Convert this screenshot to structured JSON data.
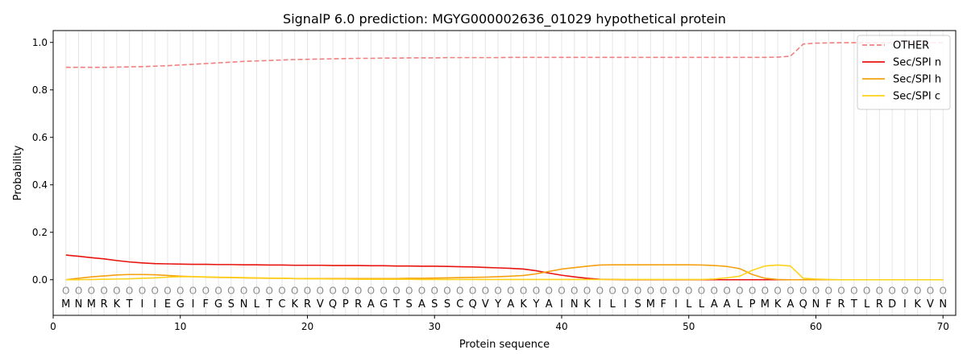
{
  "chart_data": {
    "type": "line",
    "title": "SignalP 6.0 prediction: MGYG000002636_01029 hypothetical protein",
    "xlabel": "Protein sequence",
    "ylabel": "Probability",
    "xlim": [
      0,
      71
    ],
    "ylim": [
      -0.15,
      1.05
    ],
    "x_ticks": [
      0,
      10,
      20,
      30,
      40,
      50,
      60,
      70
    ],
    "y_ticks": [
      0.0,
      0.2,
      0.4,
      0.6,
      0.8,
      1.0
    ],
    "x_tick_labels": [
      "0",
      "10",
      "20",
      "30",
      "40",
      "50",
      "60",
      "70"
    ],
    "y_tick_labels": [
      "0.0",
      "0.2",
      "0.4",
      "0.6",
      "0.8",
      "1.0"
    ],
    "grid": "vertical",
    "legend_position": "top-right",
    "sequence": [
      "M",
      "N",
      "M",
      "R",
      "K",
      "T",
      "I",
      "I",
      "E",
      "G",
      "I",
      "F",
      "G",
      "S",
      "N",
      "L",
      "T",
      "C",
      "K",
      "R",
      "V",
      "Q",
      "P",
      "R",
      "A",
      "G",
      "T",
      "S",
      "A",
      "S",
      "S",
      "C",
      "Q",
      "V",
      "Y",
      "A",
      "K",
      "Y",
      "A",
      "I",
      "N",
      "K",
      "I",
      "L",
      "I",
      "S",
      "M",
      "F",
      "I",
      "L",
      "L",
      "A",
      "A",
      "L",
      "P",
      "M",
      "K",
      "A",
      "Q",
      "N",
      "F",
      "R",
      "T",
      "L",
      "R",
      "D",
      "I",
      "K",
      "V",
      "N"
    ],
    "region_labels": [
      "O",
      "O",
      "O",
      "O",
      "O",
      "O",
      "O",
      "O",
      "O",
      "O",
      "O",
      "O",
      "O",
      "O",
      "O",
      "O",
      "O",
      "O",
      "O",
      "O",
      "O",
      "O",
      "O",
      "O",
      "O",
      "O",
      "O",
      "O",
      "O",
      "O",
      "O",
      "O",
      "O",
      "O",
      "O",
      "O",
      "O",
      "O",
      "O",
      "O",
      "O",
      "O",
      "O",
      "O",
      "O",
      "O",
      "O",
      "O",
      "O",
      "O",
      "O",
      "O",
      "O",
      "O",
      "O",
      "O",
      "O",
      "O",
      "O",
      "O",
      "O",
      "O",
      "O",
      "O",
      "O",
      "O",
      "O",
      "O",
      "O",
      "O"
    ],
    "x": [
      1,
      2,
      3,
      4,
      5,
      6,
      7,
      8,
      9,
      10,
      11,
      12,
      13,
      14,
      15,
      16,
      17,
      18,
      19,
      20,
      21,
      22,
      23,
      24,
      25,
      26,
      27,
      28,
      29,
      30,
      31,
      32,
      33,
      34,
      35,
      36,
      37,
      38,
      39,
      40,
      41,
      42,
      43,
      44,
      45,
      46,
      47,
      48,
      49,
      50,
      51,
      52,
      53,
      54,
      55,
      56,
      57,
      58,
      59,
      60,
      61,
      62,
      63,
      64,
      65,
      66,
      67,
      68,
      69,
      70
    ],
    "series": [
      {
        "name": "OTHER",
        "color": "#f08080",
        "dash": true,
        "values": [
          0.895,
          0.895,
          0.895,
          0.895,
          0.896,
          0.897,
          0.898,
          0.9,
          0.902,
          0.905,
          0.908,
          0.911,
          0.914,
          0.917,
          0.92,
          0.922,
          0.924,
          0.926,
          0.928,
          0.929,
          0.93,
          0.931,
          0.932,
          0.933,
          0.933,
          0.934,
          0.934,
          0.935,
          0.935,
          0.935,
          0.936,
          0.936,
          0.936,
          0.936,
          0.936,
          0.937,
          0.937,
          0.937,
          0.937,
          0.937,
          0.937,
          0.937,
          0.937,
          0.937,
          0.937,
          0.937,
          0.937,
          0.937,
          0.937,
          0.937,
          0.937,
          0.937,
          0.937,
          0.937,
          0.937,
          0.937,
          0.938,
          0.942,
          0.993,
          0.997,
          0.998,
          0.999,
          0.999,
          0.999,
          0.999,
          0.999,
          0.999,
          0.999,
          0.999,
          0.999
        ]
      },
      {
        "name": "Sec/SPI n",
        "color": "#e8150f",
        "dash": false,
        "values": [
          0.104,
          0.099,
          0.093,
          0.088,
          0.081,
          0.075,
          0.071,
          0.068,
          0.067,
          0.066,
          0.065,
          0.065,
          0.064,
          0.064,
          0.063,
          0.063,
          0.062,
          0.062,
          0.061,
          0.061,
          0.061,
          0.06,
          0.06,
          0.06,
          0.059,
          0.059,
          0.058,
          0.058,
          0.057,
          0.057,
          0.056,
          0.055,
          0.054,
          0.052,
          0.05,
          0.048,
          0.045,
          0.038,
          0.028,
          0.019,
          0.012,
          0.006,
          0.002,
          0.001,
          0.0,
          0.0,
          0.0,
          0.0,
          0.0,
          0.0,
          0.0,
          0.0,
          0.0,
          0.0,
          0.0,
          0.0,
          0.0,
          0.0,
          0.0,
          0.0,
          0.0,
          0.0,
          0.0,
          0.0,
          0.0,
          0.0,
          0.0,
          0.0,
          0.0,
          0.0
        ]
      },
      {
        "name": "Sec/SPI h",
        "color": "#f5a00f",
        "dash": false,
        "values": [
          0.0,
          0.006,
          0.012,
          0.016,
          0.02,
          0.022,
          0.022,
          0.021,
          0.018,
          0.015,
          0.013,
          0.011,
          0.01,
          0.009,
          0.008,
          0.007,
          0.006,
          0.006,
          0.005,
          0.005,
          0.005,
          0.005,
          0.005,
          0.005,
          0.005,
          0.005,
          0.005,
          0.006,
          0.006,
          0.007,
          0.008,
          0.009,
          0.01,
          0.011,
          0.013,
          0.015,
          0.018,
          0.025,
          0.035,
          0.045,
          0.051,
          0.057,
          0.062,
          0.063,
          0.063,
          0.063,
          0.063,
          0.063,
          0.063,
          0.063,
          0.062,
          0.06,
          0.056,
          0.047,
          0.022,
          0.006,
          0.001,
          0.0,
          0.0,
          0.0,
          0.0,
          0.0,
          0.0,
          0.0,
          0.0,
          0.0,
          0.0,
          0.0,
          0.0,
          0.0
        ]
      },
      {
        "name": "Sec/SPI c",
        "color": "#ffd21a",
        "dash": false,
        "values": [
          0.0,
          0.0,
          0.001,
          0.002,
          0.003,
          0.004,
          0.006,
          0.008,
          0.011,
          0.013,
          0.013,
          0.012,
          0.011,
          0.01,
          0.009,
          0.008,
          0.007,
          0.006,
          0.005,
          0.004,
          0.004,
          0.003,
          0.003,
          0.002,
          0.002,
          0.002,
          0.002,
          0.002,
          0.001,
          0.001,
          0.001,
          0.001,
          0.001,
          0.001,
          0.001,
          0.001,
          0.001,
          0.001,
          0.001,
          0.001,
          0.001,
          0.001,
          0.001,
          0.001,
          0.001,
          0.001,
          0.001,
          0.001,
          0.001,
          0.001,
          0.001,
          0.003,
          0.008,
          0.015,
          0.04,
          0.058,
          0.062,
          0.058,
          0.006,
          0.003,
          0.001,
          0.0,
          0.0,
          0.0,
          0.0,
          0.0,
          0.0,
          0.0,
          0.0,
          0.0
        ]
      }
    ]
  }
}
